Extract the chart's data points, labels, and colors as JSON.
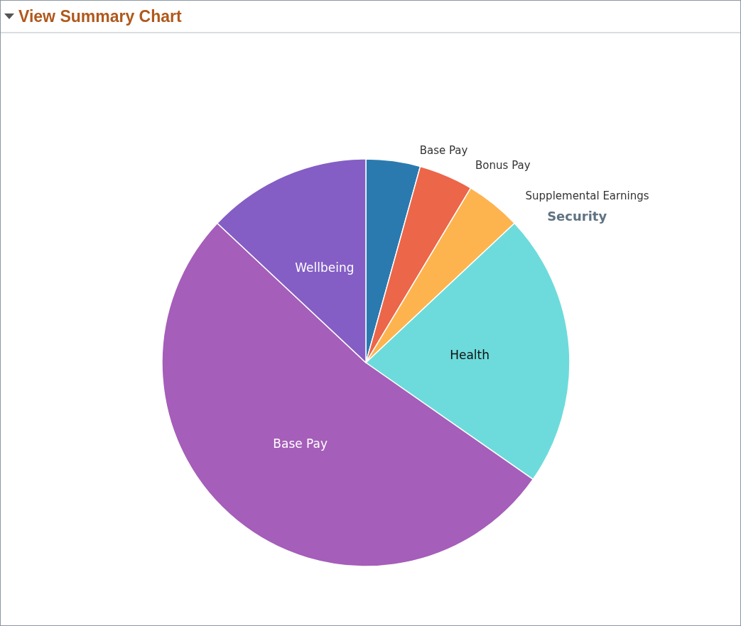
{
  "chart_data": {
    "type": "pie",
    "title": "View Summary Chart",
    "categories": [
      "Base Pay",
      "Bonus Pay",
      "Supplemental Earnings",
      "Security",
      "Health",
      "Base Pay",
      "Wellbeing"
    ],
    "values": [
      4.3,
      4.3,
      4.4,
      0,
      21.7,
      52.3,
      13.0
    ],
    "colors": [
      "#2a7ab0",
      "#ec6649",
      "#fdb44f",
      "#5f7382",
      "#6ddbdb",
      "#a55eb9",
      "#845ec5"
    ],
    "legend": false
  }
}
